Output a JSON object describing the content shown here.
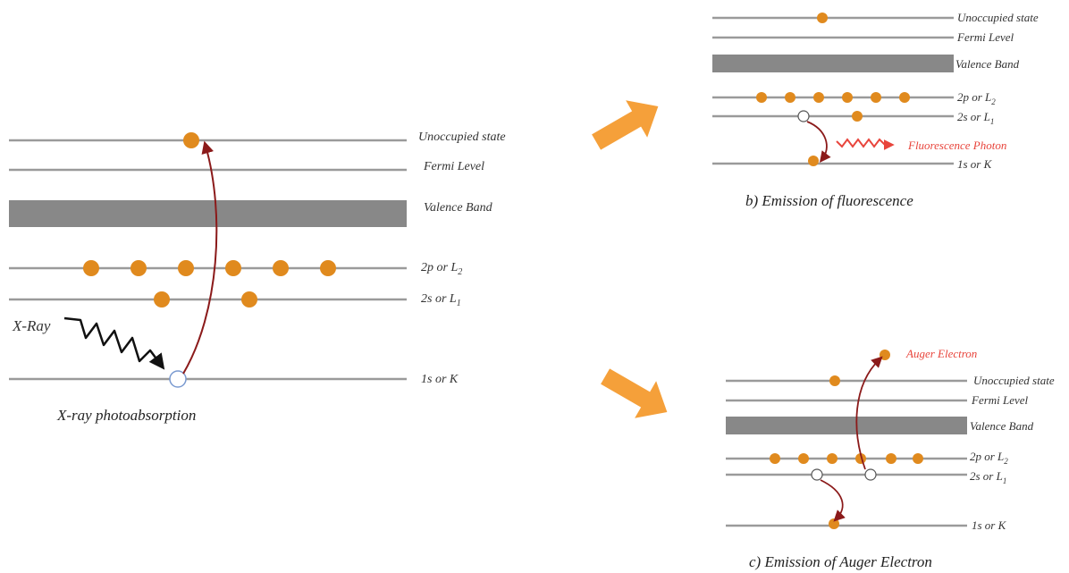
{
  "colors": {
    "level_line": "#9a9a9a",
    "valence_band": "#888888",
    "electron": "#e08a1e",
    "hole_stroke": "#7a9ad0",
    "transition_arrow": "#8b1a1a",
    "photon_red": "#e8453c",
    "xray_wave": "#111111",
    "block_arrow": "#f5a03a"
  },
  "panel_a": {
    "labels": {
      "unoccupied": "Unoccupied state",
      "fermi": "Fermi Level",
      "valence": "Valence Band",
      "l2_main": "2p or L",
      "l2_sub": "2",
      "l1_main": "2s or L",
      "l1_sub": "1",
      "k": "1s or K"
    },
    "xray_label": "X-Ray",
    "caption": "X-ray photoabsorption"
  },
  "panel_b": {
    "labels": {
      "unoccupied": "Unoccupied state",
      "fermi": "Fermi Level",
      "valence": "Valence Band",
      "l2_main": "2p or L",
      "l2_sub": "2",
      "l1_main": "2s or L",
      "l1_sub": "1",
      "k": "1s or K"
    },
    "photon_label": "Fluorescence Photon",
    "caption": "b) Emission of fluorescence"
  },
  "panel_c": {
    "labels": {
      "unoccupied": "Unoccupied state",
      "fermi": "Fermi Level",
      "valence": "Valence Band",
      "l2_main": "2p or L",
      "l2_sub": "2",
      "l1_main": "2s or L",
      "l1_sub": "1",
      "k": "1s or K"
    },
    "auger_label": "Auger Electron",
    "caption": "c) Emission of Auger Electron"
  }
}
